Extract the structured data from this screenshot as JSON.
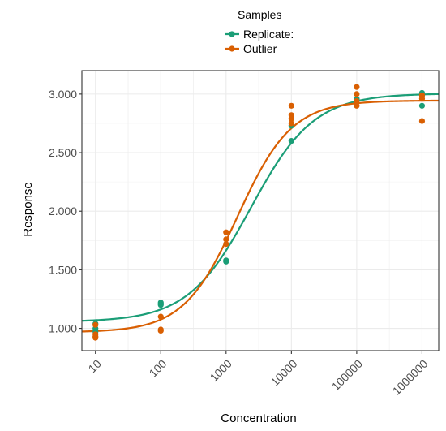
{
  "chart_data": {
    "type": "scatter",
    "title": "",
    "xlabel": "Concentration",
    "ylabel": "Response",
    "x_scale": "log10",
    "xlim": [
      6.2,
      1800000
    ],
    "ylim": [
      0.81,
      3.2
    ],
    "x_ticks": [
      10,
      100,
      1000,
      10000,
      100000,
      1000000
    ],
    "x_tick_labels": [
      "10",
      "100",
      "1000",
      "10000",
      "100000",
      "1000000"
    ],
    "y_ticks": [
      1.0,
      1.5,
      2.0,
      2.5,
      3.0
    ],
    "y_tick_labels": [
      "1.000",
      "1.500",
      "2.000",
      "2.500",
      "3.000"
    ],
    "grid": true,
    "legend": {
      "title": "Samples",
      "position": "top-center",
      "entries": [
        "Replicate:",
        "Outlier"
      ]
    },
    "series": [
      {
        "name": "Replicate:",
        "color": "#1b9e77",
        "points": [
          {
            "x": 10,
            "y": 1.04
          },
          {
            "x": 10,
            "y": 1.0
          },
          {
            "x": 10,
            "y": 0.97
          },
          {
            "x": 100,
            "y": 1.22
          },
          {
            "x": 100,
            "y": 1.21
          },
          {
            "x": 100,
            "y": 1.2
          },
          {
            "x": 1000,
            "y": 1.58
          },
          {
            "x": 1000,
            "y": 1.57
          },
          {
            "x": 10000,
            "y": 2.73
          },
          {
            "x": 10000,
            "y": 2.6
          },
          {
            "x": 100000,
            "y": 2.96
          },
          {
            "x": 100000,
            "y": 2.95
          },
          {
            "x": 1000000,
            "y": 3.01
          },
          {
            "x": 1000000,
            "y": 2.99
          },
          {
            "x": 1000000,
            "y": 2.9
          }
        ],
        "curve": {
          "bottom": 1.056,
          "top": 3.005,
          "ec50": 2400,
          "hill": 0.9
        }
      },
      {
        "name": "Outlier",
        "color": "#d95f02",
        "points": [
          {
            "x": 10,
            "y": 1.03
          },
          {
            "x": 10,
            "y": 0.95
          },
          {
            "x": 10,
            "y": 0.93
          },
          {
            "x": 10,
            "y": 0.92
          },
          {
            "x": 100,
            "y": 1.1
          },
          {
            "x": 100,
            "y": 0.99
          },
          {
            "x": 100,
            "y": 0.98
          },
          {
            "x": 1000,
            "y": 1.82
          },
          {
            "x": 1000,
            "y": 1.76
          },
          {
            "x": 1000,
            "y": 1.72
          },
          {
            "x": 10000,
            "y": 2.9
          },
          {
            "x": 10000,
            "y": 2.82
          },
          {
            "x": 10000,
            "y": 2.79
          },
          {
            "x": 10000,
            "y": 2.75
          },
          {
            "x": 100000,
            "y": 3.06
          },
          {
            "x": 100000,
            "y": 3.0
          },
          {
            "x": 100000,
            "y": 2.94
          },
          {
            "x": 100000,
            "y": 2.9
          },
          {
            "x": 1000000,
            "y": 2.99
          },
          {
            "x": 1000000,
            "y": 2.96
          },
          {
            "x": 1000000,
            "y": 2.77
          }
        ],
        "curve": {
          "bottom": 0.967,
          "top": 2.945,
          "ec50": 1500,
          "hill": 1.05
        }
      }
    ]
  }
}
